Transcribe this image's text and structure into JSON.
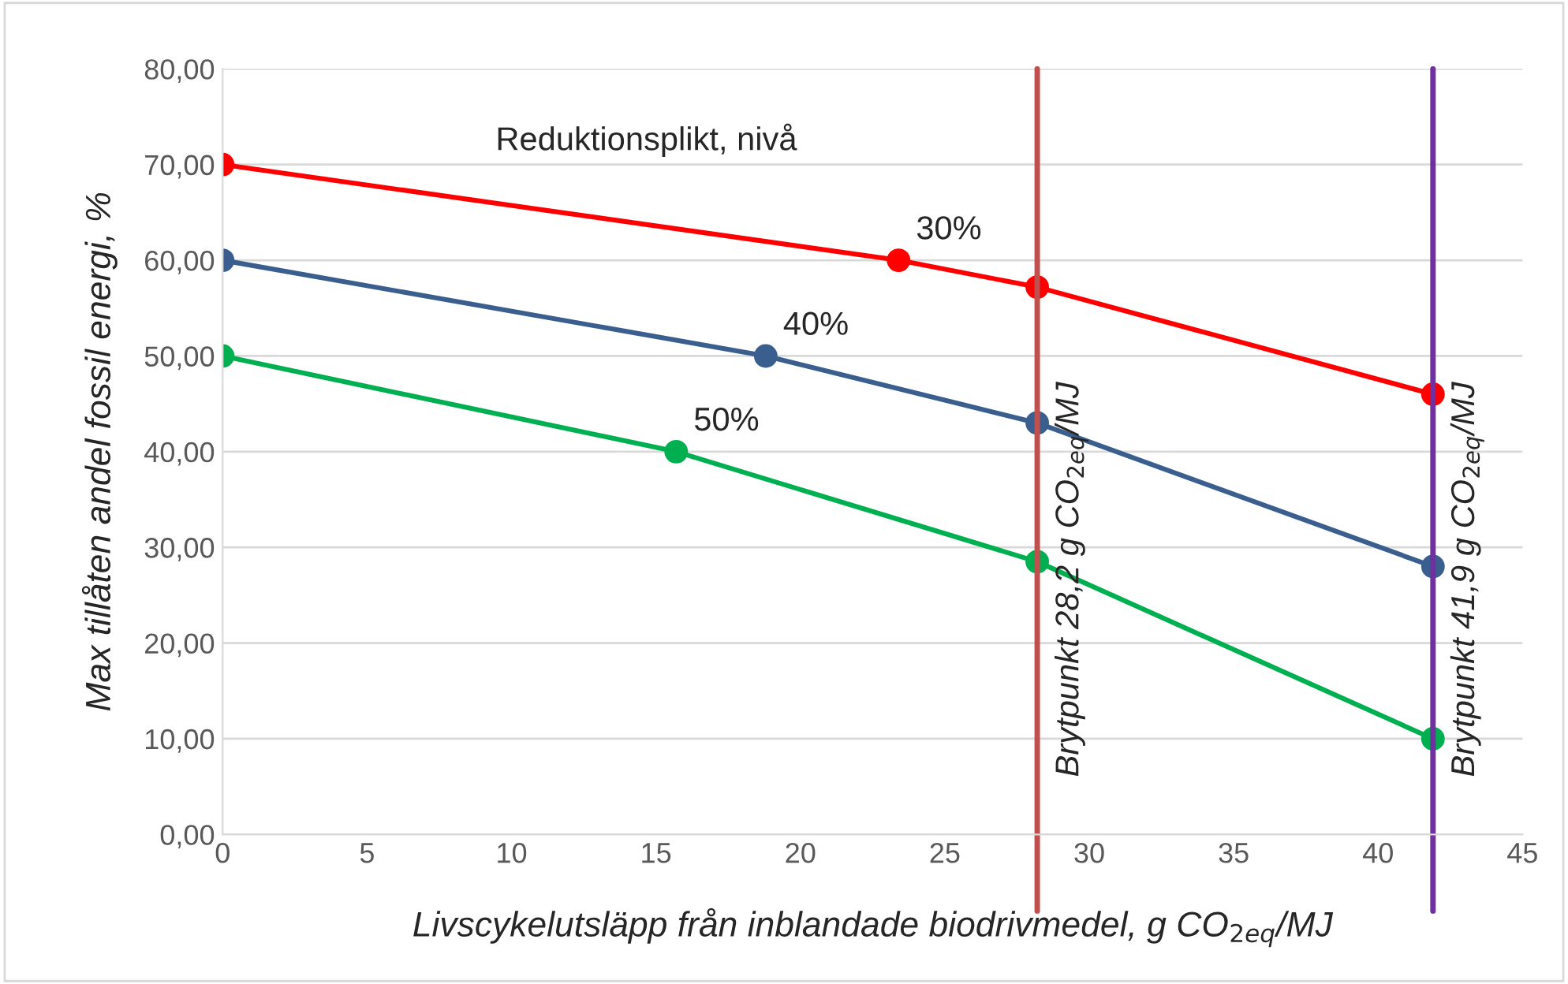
{
  "chart_data": {
    "type": "line",
    "xlabel": "Livscykelutsläpp från inblandade biodrivmedel, g CO$_{2eq}$/MJ",
    "ylabel": "Max tillåten andel fossil energi, %",
    "series": [
      {
        "name": "30%",
        "color": "#ff0000",
        "x": [
          0,
          23.4,
          28.2,
          41.9
        ],
        "values": [
          70,
          60,
          57.2,
          46
        ]
      },
      {
        "name": "40%",
        "color": "#3a5f8f",
        "x": [
          0,
          18.8,
          28.2,
          41.9
        ],
        "values": [
          60,
          50,
          43,
          28
        ]
      },
      {
        "name": "50%",
        "color": "#00b050",
        "x": [
          0,
          15.7,
          28.2,
          41.9
        ],
        "values": [
          50,
          40,
          28.5,
          10
        ]
      }
    ],
    "annotations": [
      "Reduktionsplikt, nivå"
    ],
    "ref_lines": [
      {
        "axis": "x",
        "value": 28.2,
        "label": "Brytpunkt 28,2 g CO$_{2eq}$/MJ",
        "color": "#c0504d"
      },
      {
        "axis": "x",
        "value": 41.9,
        "label": "Brytpunkt 41,9 g CO$_{2eq}$/MJ",
        "color": "#7030a0"
      }
    ],
    "xlim": [
      0,
      45
    ],
    "xticks": [
      0,
      5,
      10,
      15,
      20,
      25,
      30,
      35,
      40,
      45
    ],
    "ylim": [
      0,
      80
    ],
    "yticks": [
      {
        "value": 0,
        "label": "0,00"
      },
      {
        "value": 10,
        "label": "10,00"
      },
      {
        "value": 20,
        "label": "20,00"
      },
      {
        "value": 30,
        "label": "30,00"
      },
      {
        "value": 40,
        "label": "40,00"
      },
      {
        "value": 50,
        "label": "50,00"
      },
      {
        "value": 60,
        "label": "60,00"
      },
      {
        "value": 70,
        "label": "70,00"
      },
      {
        "value": 80,
        "label": "80,00"
      }
    ],
    "grid": "y",
    "marker": "circle",
    "line_style": "solid",
    "legend": false
  }
}
